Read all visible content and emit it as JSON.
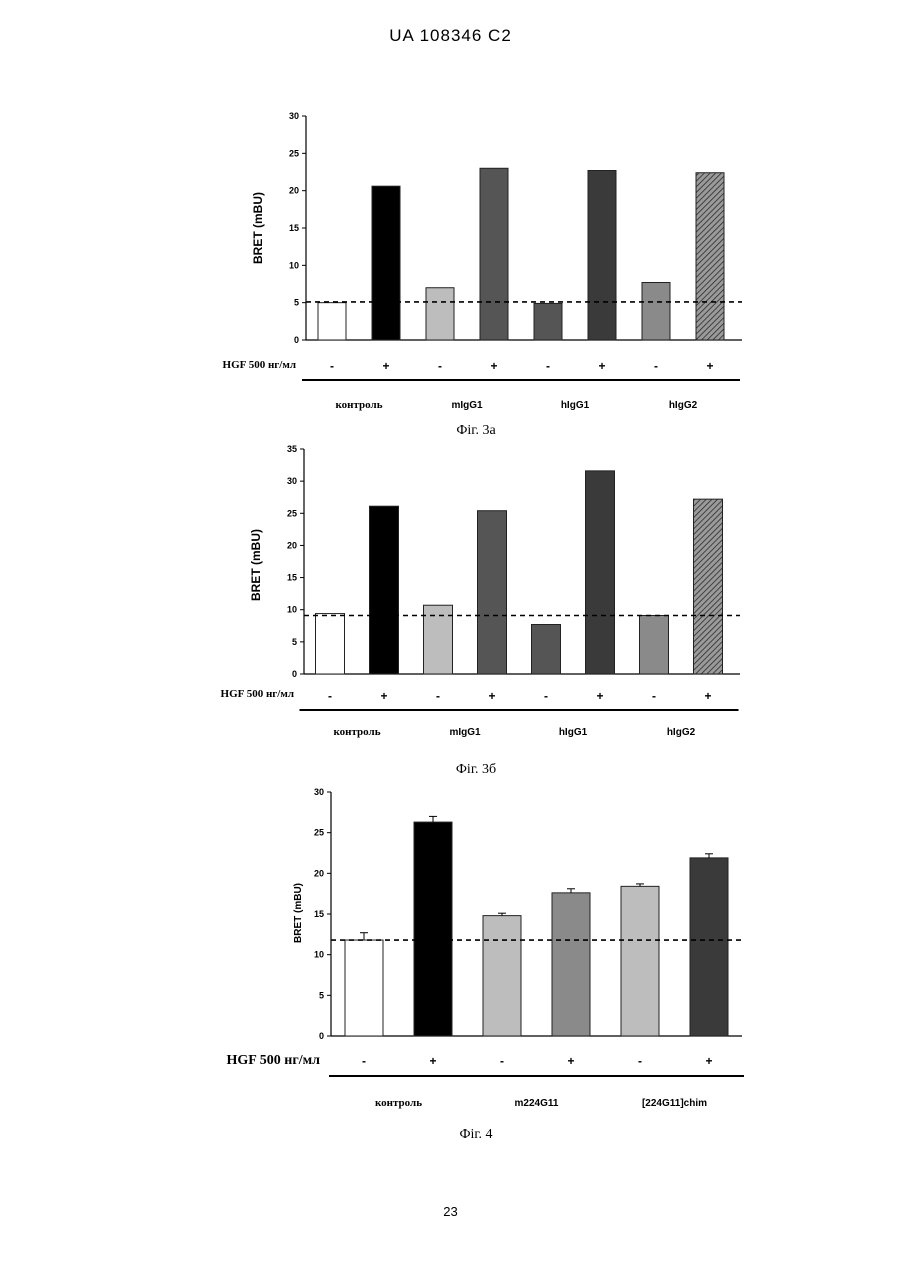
{
  "header": "UA   108346   C2",
  "page_number": "23",
  "patterns": {
    "white": "#ffffff",
    "black": "#000000",
    "light": "#bdbdbd",
    "mid": "#8a8a8a",
    "dark": "#555555",
    "darker": "#3a3a3a",
    "hatch": "#6e6e6e"
  },
  "chart_data": [
    {
      "type": "bar",
      "caption": "Фіг. 3а",
      "ylabel": "BRET (mBU)",
      "ylim": [
        0,
        30
      ],
      "yticks": [
        "0",
        "5",
        "10",
        "15",
        "20",
        "25",
        "30"
      ],
      "baseline": 5.1,
      "treatment_label": "HGF 500 нг/мл",
      "signs": [
        "-",
        "+",
        "-",
        "+",
        "-",
        "+",
        "-",
        "+"
      ],
      "values": [
        5.0,
        20.6,
        7.0,
        23.0,
        4.9,
        22.7,
        7.7,
        22.4
      ],
      "fills": [
        "white",
        "black",
        "light",
        "dark",
        "dark",
        "darker",
        "mid",
        "hatch"
      ],
      "groups": [
        "контроль",
        "mIgG1",
        "hIgG1",
        "hIgG2"
      ]
    },
    {
      "type": "bar",
      "caption": "Фіг. 3б",
      "ylabel": "BRET (mBU)",
      "ylim": [
        0,
        35
      ],
      "yticks": [
        "0",
        "5",
        "10",
        "15",
        "20",
        "25",
        "30",
        "35"
      ],
      "baseline": 9.1,
      "treatment_label": "HGF 500 нг/мл",
      "signs": [
        "-",
        "+",
        "-",
        "+",
        "-",
        "+",
        "-",
        "+"
      ],
      "values": [
        9.4,
        26.1,
        10.7,
        25.4,
        7.7,
        31.6,
        9.1,
        27.2
      ],
      "fills": [
        "white",
        "black",
        "light",
        "dark",
        "dark",
        "darker",
        "mid",
        "hatch"
      ],
      "groups": [
        "контроль",
        "mIgG1",
        "hIgG1",
        "hIgG2"
      ]
    },
    {
      "type": "bar",
      "caption": "Фіг. 4",
      "ylabel": "BRET (mBU)",
      "ylim": [
        0,
        30
      ],
      "yticks": [
        "0",
        "5",
        "10",
        "15",
        "20",
        "25",
        "30"
      ],
      "baseline": 11.8,
      "treatment_label": "HGF 500 нг/мл",
      "signs": [
        "-",
        "+",
        "-",
        "+",
        "-",
        "+"
      ],
      "values": [
        11.8,
        26.3,
        14.8,
        17.6,
        18.4,
        21.9
      ],
      "errors": [
        0.9,
        0.7,
        0.3,
        0.5,
        0.3,
        0.5
      ],
      "fills": [
        "white",
        "black",
        "light",
        "mid",
        "light",
        "darker"
      ],
      "groups": [
        "контроль",
        "m224G11",
        "[224G11]chim"
      ]
    }
  ]
}
